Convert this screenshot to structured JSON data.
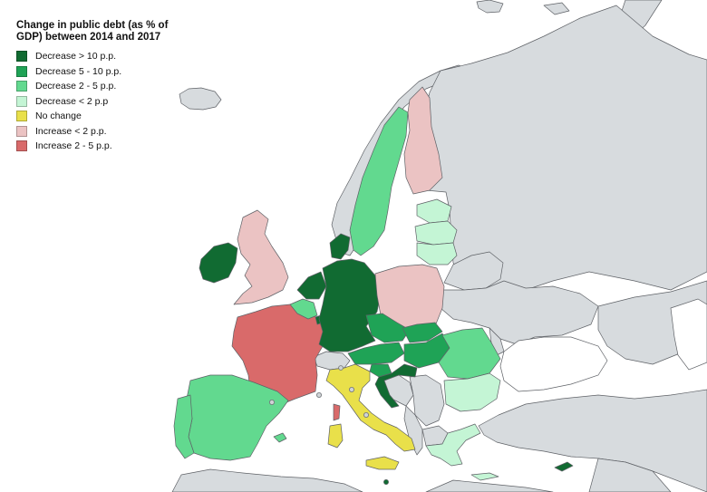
{
  "legend": {
    "title": "Change in public debt (as % of GDP) between 2014 and 2017",
    "items": [
      {
        "key": "dec_gt10",
        "label": "Decrease > 10 p.p.",
        "color": "#116b32"
      },
      {
        "key": "dec_5_10",
        "label": "Decrease 5 - 10 p.p.",
        "color": "#1fa356"
      },
      {
        "key": "dec_2_5",
        "label": "Decrease 2 - 5 p.p.",
        "color": "#62d98f"
      },
      {
        "key": "dec_lt2",
        "label": "Decrease < 2 p.p",
        "color": "#c4f5d5"
      },
      {
        "key": "no_change",
        "label": "No change",
        "color": "#e9e04a"
      },
      {
        "key": "inc_lt2",
        "label": "Increase < 2 p.p.",
        "color": "#ebc3c3"
      },
      {
        "key": "inc_2_5",
        "label": "Increase 2 - 5 p.p.",
        "color": "#d96a6a"
      }
    ]
  },
  "colors": {
    "no_data_eu": "#ffffff",
    "outside": "#d7dbde",
    "border": "#5e6166"
  },
  "map": {
    "type": "choropleth",
    "countries": [
      {
        "id": "ireland",
        "category": "dec_gt10"
      },
      {
        "id": "united-kingdom",
        "category": "inc_lt2"
      },
      {
        "id": "france",
        "category": "inc_2_5"
      },
      {
        "id": "spain",
        "category": "dec_2_5"
      },
      {
        "id": "portugal",
        "category": "dec_2_5"
      },
      {
        "id": "belgium",
        "category": "dec_2_5"
      },
      {
        "id": "netherlands",
        "category": "dec_gt10"
      },
      {
        "id": "luxembourg",
        "category": "dec_gt10"
      },
      {
        "id": "germany",
        "category": "dec_gt10"
      },
      {
        "id": "denmark",
        "category": "dec_gt10"
      },
      {
        "id": "norway",
        "category": "outside"
      },
      {
        "id": "sweden",
        "category": "dec_2_5"
      },
      {
        "id": "finland",
        "category": "inc_lt2"
      },
      {
        "id": "estonia",
        "category": "dec_lt2"
      },
      {
        "id": "latvia",
        "category": "dec_lt2"
      },
      {
        "id": "lithuania",
        "category": "dec_lt2"
      },
      {
        "id": "poland",
        "category": "inc_lt2"
      },
      {
        "id": "czechia",
        "category": "dec_5_10"
      },
      {
        "id": "slovakia",
        "category": "dec_5_10"
      },
      {
        "id": "austria",
        "category": "dec_5_10"
      },
      {
        "id": "hungary",
        "category": "dec_5_10"
      },
      {
        "id": "slovenia",
        "category": "dec_5_10"
      },
      {
        "id": "croatia",
        "category": "dec_gt10"
      },
      {
        "id": "romania",
        "category": "dec_2_5"
      },
      {
        "id": "bulgaria",
        "category": "dec_lt2"
      },
      {
        "id": "greece",
        "category": "dec_lt2"
      },
      {
        "id": "italy",
        "category": "no_change"
      },
      {
        "id": "sardinia",
        "category": "no_change"
      },
      {
        "id": "sicily",
        "category": "no_change"
      },
      {
        "id": "corsica",
        "category": "inc_2_5"
      },
      {
        "id": "cyprus",
        "category": "dec_gt10"
      },
      {
        "id": "malta",
        "category": "dec_gt10"
      },
      {
        "id": "balearics",
        "category": "dec_2_5"
      },
      {
        "id": "crete",
        "category": "dec_lt2"
      }
    ]
  }
}
